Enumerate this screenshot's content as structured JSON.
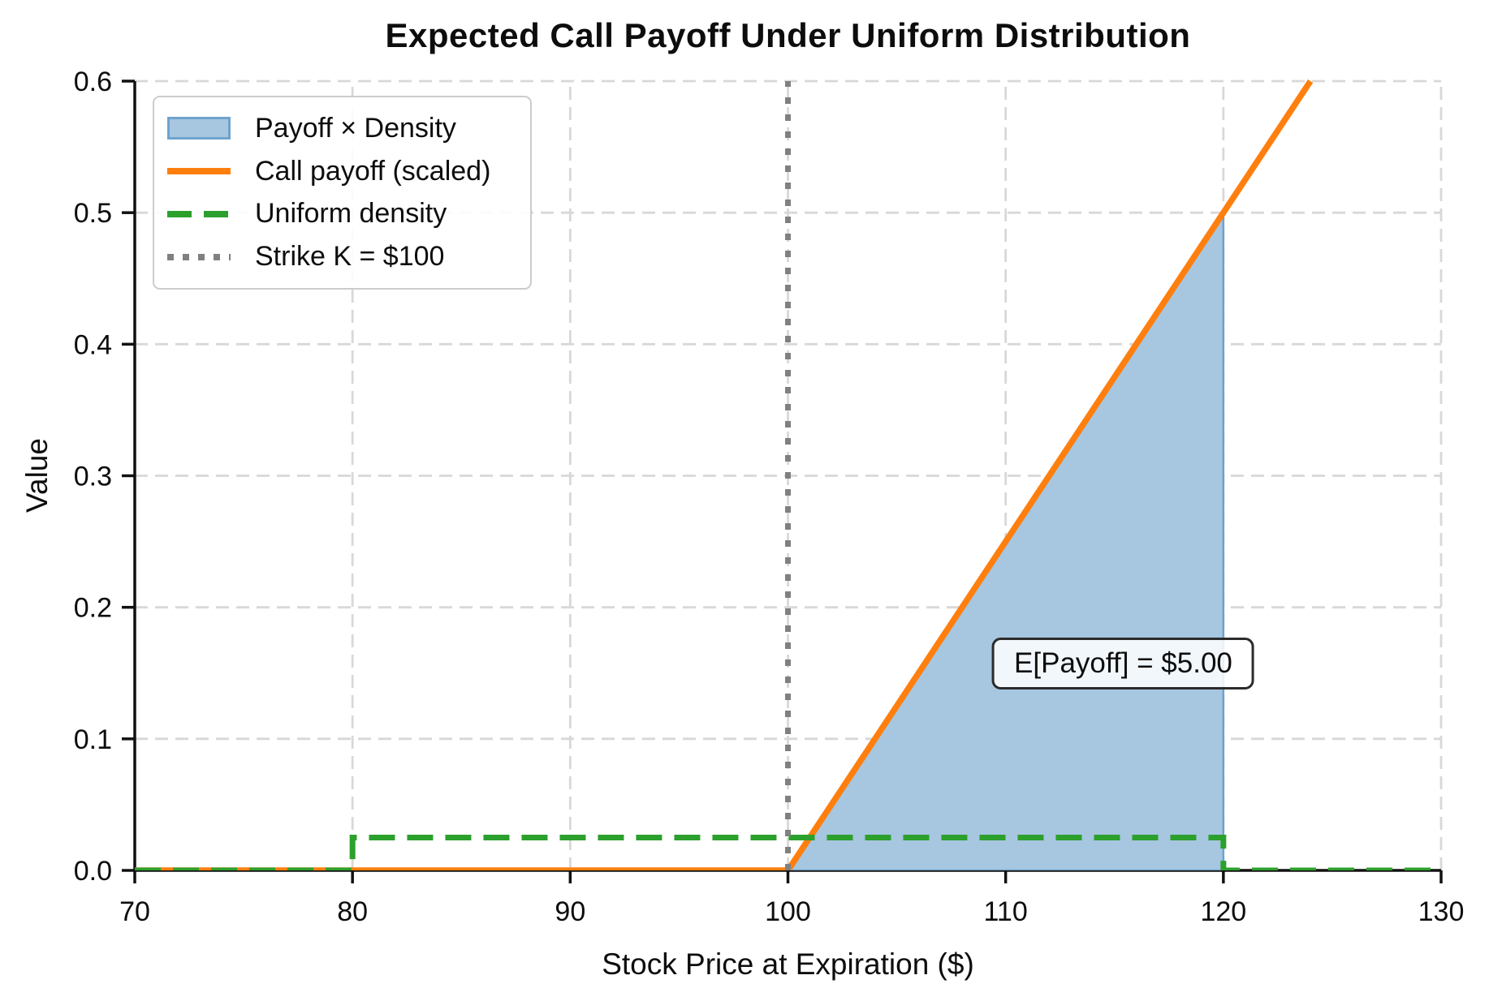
{
  "chart_data": {
    "type": "line",
    "title": "Expected Call Payoff Under Uniform Distribution",
    "xlabel": "Stock Price at Expiration ($)",
    "ylabel": "Value",
    "xlim": [
      70,
      130
    ],
    "ylim": [
      0,
      0.6
    ],
    "x_ticks": [
      70,
      80,
      90,
      100,
      110,
      120,
      130
    ],
    "y_ticks": [
      0.0,
      0.1,
      0.2,
      0.3,
      0.4,
      0.5,
      0.6
    ],
    "grid": true,
    "legend_position": "upper left",
    "colors": {
      "payoff_density_fill": "#a7c6e0",
      "payoff_density_edge": "#6fa3cc",
      "call_payoff": "#ff7f0e",
      "uniform_density": "#2ca02c",
      "strike": "#808080",
      "grid": "#d8d8d8",
      "spine": "#111111"
    },
    "series": [
      {
        "name": "Payoff × Density",
        "type": "area",
        "points": [
          [
            100,
            0
          ],
          [
            120,
            0.5
          ],
          [
            120,
            0
          ]
        ]
      },
      {
        "name": "Call payoff (scaled)",
        "type": "line",
        "style": "solid",
        "points": [
          [
            70,
            0
          ],
          [
            100,
            0
          ],
          [
            124,
            0.6
          ]
        ]
      },
      {
        "name": "Uniform density",
        "type": "line",
        "style": "dashed",
        "points": [
          [
            70,
            0
          ],
          [
            80,
            0
          ],
          [
            80,
            0.025
          ],
          [
            120,
            0.025
          ],
          [
            120,
            0
          ],
          [
            130,
            0
          ]
        ]
      },
      {
        "name": "Strike K = $100",
        "type": "vline",
        "style": "dotted",
        "x": 100,
        "y_from": 0,
        "y_to": 0.6
      }
    ],
    "annotation": {
      "text": "E[Payoff] = $5.00",
      "x": 115.4,
      "y": 0.157
    }
  }
}
